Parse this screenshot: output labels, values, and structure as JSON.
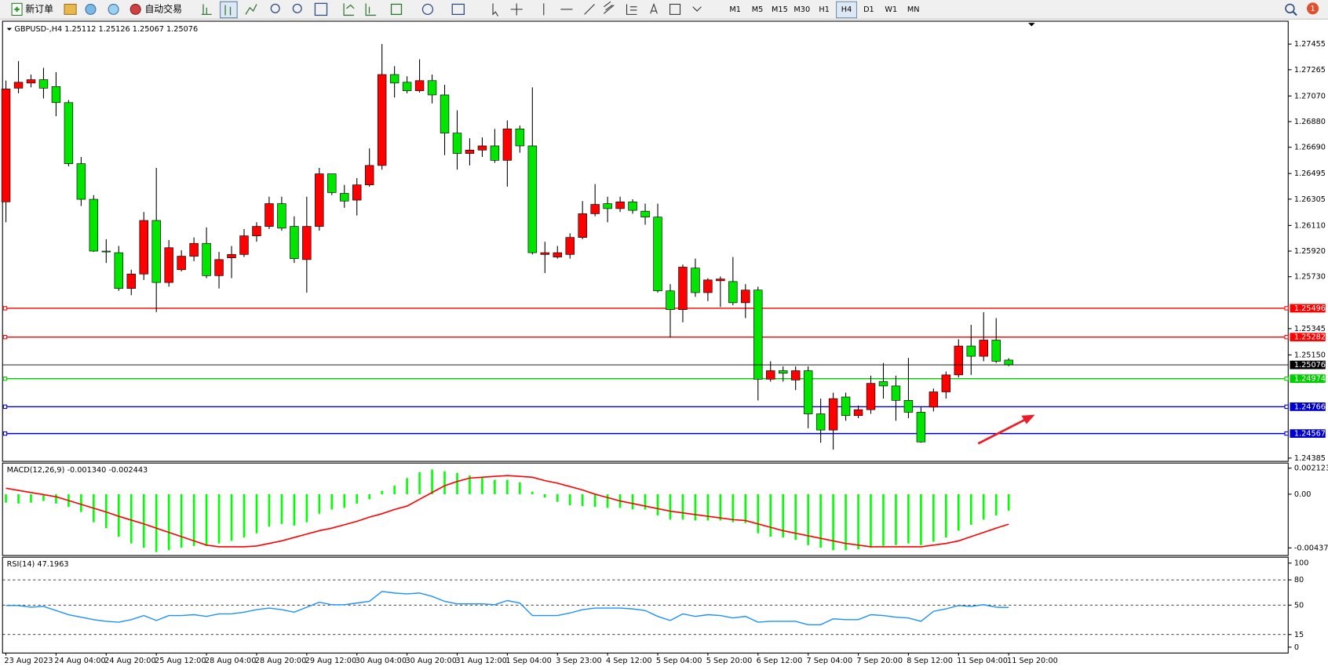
{
  "toolbar": {
    "new_order": "新订单",
    "auto_trading": "自动交易",
    "timeframes": [
      "M1",
      "M5",
      "M15",
      "M30",
      "H1",
      "H4",
      "D1",
      "W1",
      "MN"
    ],
    "active_timeframe": "H4",
    "notification_count": 1
  },
  "chart_data": [
    {
      "type": "candlestick",
      "title": "GBPUSD-,H4  1.25112 1.25126 1.25067 1.25076",
      "categories": [
        "23 Aug 2023",
        null,
        null,
        null,
        "24 Aug 04:00",
        null,
        null,
        null,
        "24 Aug 20:00",
        null,
        null,
        null,
        "25 Aug 12:00",
        null,
        null,
        null,
        "28 Aug 04:00",
        null,
        null,
        null,
        "28 Aug 20:00",
        null,
        null,
        null,
        "29 Aug 12:00",
        null,
        null,
        null,
        "30 Aug 04:00",
        null,
        null,
        null,
        "30 Aug 20:00",
        null,
        null,
        null,
        "31 Aug 12:00",
        null,
        null,
        null,
        "1 Sep 04:00",
        null,
        null,
        null,
        "3 Sep 23:00",
        null,
        null,
        null,
        "4 Sep 12:00",
        null,
        null,
        null,
        "5 Sep 04:00",
        null,
        null,
        null,
        "5 Sep 20:00",
        null,
        null,
        null,
        "6 Sep 12:00",
        null,
        null,
        null,
        "7 Sep 04:00",
        null,
        null,
        null,
        "7 Sep 20:00",
        null,
        null,
        null,
        "8 Sep 12:00",
        null,
        null,
        null,
        "11 Sep 04:00",
        null,
        null,
        null,
        "11 Sep 20:00"
      ],
      "open": [
        1.26285,
        1.27128,
        1.27166,
        1.27191,
        1.2714,
        1.27021,
        1.26568,
        1.26304,
        1.2592,
        1.25908,
        1.25643,
        1.2575,
        1.26147,
        1.25687,
        1.25782,
        1.25882,
        1.25977,
        1.25738,
        1.2587,
        1.25895,
        1.26033,
        1.26103,
        1.26272,
        1.26103,
        1.25857,
        1.26103,
        1.26493,
        1.26348,
        1.26298,
        1.26411,
        1.26555,
        1.27229,
        1.27172,
        1.27109,
        1.27184,
        1.27078,
        1.26795,
        1.26644,
        1.26669,
        1.267,
        1.26593,
        1.26826,
        1.267,
        1.25895,
        1.25876,
        1.25895,
        1.26021,
        1.26197,
        1.26272,
        1.26235,
        1.26285,
        1.26216,
        1.26172,
        1.25625,
        1.25486,
        1.25794,
        1.25612,
        1.257,
        1.25694,
        1.25537,
        1.25631,
        1.2497,
        1.25033,
        1.24964,
        1.25033,
        1.24713,
        1.24593,
        1.24838,
        1.247,
        1.24744,
        1.24952,
        1.2492,
        1.24813,
        1.24725,
        1.24763,
        1.24876,
        1.25002,
        1.25216,
        1.2514,
        1.2526,
        1.25112
      ],
      "high": [
        1.27184,
        1.27329,
        1.27229,
        1.27279,
        1.27247,
        1.2704,
        1.26618,
        1.26335,
        1.26008,
        1.25958,
        1.25782,
        1.2621,
        1.26537,
        1.26002,
        1.25926,
        1.26021,
        1.26096,
        1.25914,
        1.25958,
        1.26084,
        1.26134,
        1.26323,
        1.26323,
        1.26178,
        1.26323,
        1.26537,
        1.26493,
        1.26411,
        1.26461,
        1.26681,
        1.27455,
        1.27291,
        1.27216,
        1.27342,
        1.27229,
        1.27153,
        1.26964,
        1.26757,
        1.26763,
        1.26826,
        1.26889,
        1.26851,
        1.27134,
        1.25989,
        1.25958,
        1.26052,
        1.26291,
        1.26417,
        1.26323,
        1.26323,
        1.26304,
        1.26272,
        1.26272,
        1.25675,
        1.2582,
        1.25864,
        1.25719,
        1.25732,
        1.25876,
        1.25675,
        1.25656,
        1.25103,
        1.25065,
        1.25065,
        1.25065,
        1.24826,
        1.2487,
        1.2487,
        1.24775,
        1.24996,
        1.2509,
        1.24996,
        1.25128,
        1.24763,
        1.24901,
        1.25027,
        1.25266,
        1.25373,
        1.25467,
        1.25423,
        1.25126
      ],
      "low": [
        1.26134,
        1.2709,
        1.27134,
        1.27052,
        1.2692,
        1.26549,
        1.26254,
        1.25914,
        1.25832,
        1.25625,
        1.25593,
        1.25706,
        1.25467,
        1.25656,
        1.25769,
        1.25845,
        1.25719,
        1.25643,
        1.25719,
        1.25876,
        1.25989,
        1.26084,
        1.26071,
        1.25832,
        1.25612,
        1.26071,
        1.26335,
        1.26241,
        1.26184,
        1.26398,
        1.26524,
        1.27059,
        1.2709,
        1.27096,
        1.27015,
        1.26631,
        1.26524,
        1.26555,
        1.26618,
        1.26574,
        1.26398,
        1.2665,
        1.25895,
        1.25757,
        1.25864,
        1.25864,
        1.26008,
        1.26178,
        1.26134,
        1.2621,
        1.26197,
        1.26115,
        1.25612,
        1.25279,
        1.25392,
        1.25581,
        1.25549,
        1.25505,
        1.25518,
        1.25423,
        1.24813,
        1.24952,
        1.24952,
        1.24889,
        1.24606,
        1.24499,
        1.24448,
        1.24662,
        1.24681,
        1.24713,
        1.24826,
        1.24662,
        1.24681,
        1.24499,
        1.24731,
        1.24826,
        1.24983,
        1.25002,
        1.25103,
        1.2509,
        1.25067
      ],
      "close": [
        1.27122,
        1.27172,
        1.27191,
        1.27128,
        1.27021,
        1.26568,
        1.26304,
        1.2592,
        1.25914,
        1.25643,
        1.2575,
        1.26147,
        1.25687,
        1.25945,
        1.25882,
        1.25977,
        1.25738,
        1.25857,
        1.25895,
        1.26033,
        1.26103,
        1.26272,
        1.2609,
        1.25864,
        1.26103,
        1.26493,
        1.26354,
        1.26291,
        1.26411,
        1.26555,
        1.27229,
        1.27166,
        1.27109,
        1.27184,
        1.27078,
        1.26795,
        1.26644,
        1.26669,
        1.267,
        1.26593,
        1.26826,
        1.267,
        1.25908,
        1.25908,
        1.25908,
        1.26021,
        1.26197,
        1.26266,
        1.26235,
        1.26285,
        1.26222,
        1.26172,
        1.25625,
        1.25486,
        1.25801,
        1.25612,
        1.25706,
        1.25713,
        1.25537,
        1.25631,
        1.2497,
        1.25033,
        1.25014,
        1.25033,
        1.24713,
        1.24593,
        1.24826,
        1.247,
        1.24744,
        1.24939,
        1.2492,
        1.24813,
        1.24725,
        1.24505,
        1.24876,
        1.25002,
        1.25216,
        1.2514,
        1.2526,
        1.25103,
        1.25076
      ],
      "up_color": "#ff0000",
      "down_color": "#00e600",
      "levels": [
        {
          "value": 1.25496,
          "color": "#ff0000"
        },
        {
          "value": 1.25282,
          "color": "#ff0000"
        },
        {
          "value": 1.24974,
          "color": "#00cc00"
        },
        {
          "value": 1.24766,
          "color": "#0000cc"
        },
        {
          "value": 1.24567,
          "color": "#0000cc"
        }
      ],
      "ylim": [
        1.24367,
        1.27612
      ],
      "yticks": [
        1.27455,
        1.27265,
        {
          "value": 1.2707,
          "label": "1.27070"
        },
        {
          "value": 1.2688,
          "label": "1.26880"
        },
        {
          "value": 1.2669,
          "label": "1.26690"
        },
        1.26495,
        1.26305,
        {
          "value": 1.2611,
          "label": "1.26110"
        },
        {
          "value": 1.2592,
          "label": "1.25920"
        },
        {
          "value": 1.2573,
          "label": "1.25730"
        },
        1.25345,
        {
          "value": 1.2515,
          "label": "1.25150"
        },
        1.24385
      ]
    },
    {
      "type": "macd",
      "title": "MACD(12,26,9) -0.001340 -0.002443",
      "histogram": [
        -0.000692,
        -0.000761,
        -0.000692,
        -0.000554,
        -0.000761,
        -0.001038,
        -0.001453,
        -0.002284,
        -0.002768,
        -0.00346,
        -0.004014,
        -0.00436,
        -0.004706,
        -0.004567,
        -0.00436,
        -0.004221,
        -0.004221,
        -0.004014,
        -0.003806,
        -0.003529,
        -0.003183,
        -0.00263,
        -0.002422,
        -0.00256,
        -0.002284,
        -0.001592,
        -0.001246,
        -0.001107,
        -0.000761,
        -0.000415,
        0.000277,
        0.000692,
        0.001315,
        0.001799,
        0.002007,
        0.001868,
        0.00173,
        0.001522,
        0.001384,
        0.001176,
        0.001176,
        0.000969,
        0.000208,
        -0.000277,
        -0.000623,
        -0.0009,
        -0.000969,
        -0.001038,
        -0.001107,
        -0.001107,
        -0.001246,
        -0.001246,
        -0.00173,
        -0.002076,
        -0.002076,
        -0.002145,
        -0.002145,
        -0.002145,
        -0.002284,
        -0.002353,
        -0.003183,
        -0.00346,
        -0.003529,
        -0.003737,
        -0.004152,
        -0.00436,
        -0.004567,
        -0.004567,
        -0.004498,
        -0.00436,
        -0.004221,
        -0.004152,
        -0.004014,
        -0.004152,
        -0.003875,
        -0.003529,
        -0.002976,
        -0.002491,
        -0.002076,
        -0.00173,
        -0.00134
      ],
      "signal": [
        0.000484,
        0.000311,
        0.000138,
        -3.5e-05,
        -0.000208,
        -0.000519,
        -0.00083,
        -0.001142,
        -0.001453,
        -0.001799,
        -0.002111,
        -0.002422,
        -0.002768,
        -0.003114,
        -0.00346,
        -0.003806,
        -0.004152,
        -0.00429,
        -0.00429,
        -0.00429,
        -0.004221,
        -0.004014,
        -0.003806,
        -0.003529,
        -0.003252,
        -0.002976,
        -0.002768,
        -0.002491,
        -0.002214,
        -0.001868,
        -0.001592,
        -0.001246,
        -0.000969,
        -0.000415,
        0.000138,
        0.000692,
        0.001038,
        0.001315,
        0.001384,
        0.001453,
        0.001522,
        0.001453,
        0.001384,
        0.001107,
        0.0009,
        0.000623,
        0.000346,
        0,
        -0.000277,
        -0.000554,
        -0.000761,
        -0.000969,
        -0.001176,
        -0.001384,
        -0.001522,
        -0.001661,
        -0.001799,
        -0.001938,
        -0.002076,
        -0.002145,
        -0.002422,
        -0.002699,
        -0.002976,
        -0.003183,
        -0.003391,
        -0.003598,
        -0.003806,
        -0.004014,
        -0.004152,
        -0.00429,
        -0.00429,
        -0.00429,
        -0.00429,
        -0.00429,
        -0.004152,
        -0.004014,
        -0.003806,
        -0.00346,
        -0.003114,
        -0.002768,
        -0.002443
      ],
      "histogram_color": "#00ff00",
      "signal_color": "#ff0000",
      "ylim": [
        -0.00493,
        0.00247
      ],
      "yticks": [
        0.002123,
        {
          "value": 0,
          "label": "0.00"
        },
        -0.004378
      ]
    },
    {
      "type": "line",
      "title": "RSI(14) 47.1963",
      "values": [
        49.5,
        49.5,
        47.5,
        48.5,
        43.6,
        38.6,
        35.6,
        32.7,
        30.7,
        29.7,
        32.7,
        37.6,
        31.7,
        37.6,
        37.6,
        38.6,
        36.6,
        39.6,
        39.6,
        41.6,
        44.6,
        46.5,
        44.6,
        41.6,
        47.5,
        53.5,
        50.5,
        50.5,
        52.5,
        54.5,
        66.3,
        64.4,
        63.4,
        64.4,
        60.4,
        54.5,
        51.5,
        51.5,
        51.5,
        50.5,
        55.4,
        52.5,
        37.6,
        37.6,
        37.6,
        40.6,
        44.6,
        46.5,
        46.5,
        46.5,
        45.5,
        43.6,
        36.6,
        31.7,
        39.6,
        36.6,
        38.6,
        37.6,
        34.7,
        36.6,
        29.7,
        30.7,
        30.7,
        30.7,
        26.7,
        26.7,
        33.7,
        32.7,
        32.7,
        38.6,
        37.6,
        35.6,
        34.7,
        30.7,
        42.6,
        45.5,
        49.5,
        48.5,
        50.5,
        47.5,
        47.1963
      ],
      "color": "#1e90ff",
      "levels": [
        80,
        50,
        15
      ],
      "ylim": [
        -6,
        106
      ],
      "yticks": [
        100,
        80,
        50,
        15,
        0
      ]
    }
  ]
}
